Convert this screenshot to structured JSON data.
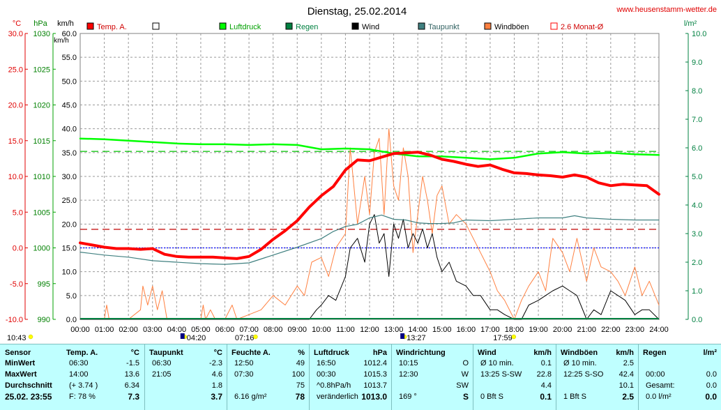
{
  "header": {
    "title": "Dienstag, 25.02.2014",
    "site": "www.heusenstamm-wetter.de"
  },
  "units": {
    "temp": "°C",
    "pressure": "hPa",
    "speed": "km/h",
    "rain": "l/m²"
  },
  "legend": [
    {
      "label": "Temp. A.",
      "color": "#ff0000",
      "style": "filled"
    },
    {
      "label": "",
      "color": "#000000",
      "style": "hollow"
    },
    {
      "label": "Luftdruck",
      "color": "#00ff00",
      "style": "filled"
    },
    {
      "label": "Regen",
      "color": "#008040",
      "style": "filled"
    },
    {
      "label": "Wind",
      "color": "#000000",
      "style": "filled"
    },
    {
      "label": "Taupunkt",
      "color": "#408080",
      "style": "filled"
    },
    {
      "label": "Windböen",
      "color": "#ff8040",
      "style": "filled"
    },
    {
      "label": "2.6 Monat-Ø",
      "color": "#ff0000",
      "style": "hollow"
    }
  ],
  "chart_data": {
    "type": "line",
    "title": "Dienstag, 25.02.2014",
    "axes": {
      "temp_ticks": [
        "30.0",
        "25.0",
        "20.0",
        "15.0",
        "10.0",
        "5.0",
        "0.0",
        "-5.0",
        "-10.0"
      ],
      "pressure_ticks": [
        "1030",
        "1025",
        "1020",
        "1015",
        "1010",
        "1005",
        "1000",
        "995",
        "990"
      ],
      "speed_ticks": [
        "60.0",
        "55.0",
        "50.0",
        "45.0",
        "40.0",
        "35.0",
        "30.0",
        "25.0",
        "20.0",
        "15.0",
        "10.0",
        "5.0",
        "0.0"
      ],
      "rain_ticks": [
        "10.0",
        "9.0",
        "8.0",
        "7.0",
        "6.0",
        "5.0",
        "4.0",
        "3.0",
        "2.0",
        "1.0",
        "0.0"
      ],
      "x_ticks": [
        "00:00",
        "01:00",
        "02:00",
        "03:00",
        "04:00",
        "05:00",
        "06:00",
        "07:00",
        "08:00",
        "09:00",
        "10:00",
        "11:00",
        "12:00",
        "13:00",
        "14:00",
        "15:00",
        "16:00",
        "17:00",
        "18:00",
        "19:00",
        "20:00",
        "21:00",
        "22:00",
        "23:00",
        "24:00"
      ],
      "temp_range": [
        -10,
        30
      ],
      "pressure_range": [
        990,
        1030
      ],
      "speed_range": [
        0,
        60
      ],
      "rain_range": [
        0,
        10
      ],
      "x_range_hours": [
        0,
        24
      ],
      "grid": true
    },
    "sun_markers": [
      {
        "label": "10:43",
        "hour": -1.6
      },
      {
        "label": "04:20",
        "hour": 4.33
      },
      {
        "label": "07:16",
        "hour": 7.27
      },
      {
        "label": "13:27",
        "hour": 13.45
      },
      {
        "label": "17:59",
        "hour": 17.98
      }
    ],
    "reference_lines": [
      {
        "name": "2.6 Monat-Ø",
        "axis": "temp",
        "value": 2.6,
        "color": "#c00000",
        "dash": "10,6"
      },
      {
        "name": "Luftdruck-Ø",
        "axis": "pressure",
        "value": 1013.5,
        "color": "#00c000",
        "dash": "10,6"
      },
      {
        "name": "0 °C",
        "axis": "temp",
        "value": 0.0,
        "color": "#0000ff",
        "dash": "2,2"
      }
    ],
    "series": [
      {
        "name": "Temp. A.",
        "axis": "temp",
        "color": "#ff0000",
        "width": 4,
        "x": [
          0,
          0.5,
          1,
          1.5,
          2,
          2.5,
          3,
          3.5,
          4,
          4.5,
          5,
          5.5,
          6,
          6.5,
          7,
          7.5,
          8,
          8.5,
          9,
          9.5,
          10,
          10.5,
          11,
          11.5,
          12,
          12.5,
          13,
          13.5,
          14,
          14.5,
          15,
          15.5,
          16,
          16.5,
          17,
          17.5,
          18,
          18.5,
          19,
          19.5,
          20,
          20.5,
          21,
          21.5,
          22,
          22.5,
          23,
          23.5,
          24
        ],
        "y": [
          0.7,
          0.4,
          0.1,
          -0.1,
          -0.1,
          -0.2,
          -0.1,
          -0.9,
          -1.2,
          -1.3,
          -1.3,
          -1.3,
          -1.4,
          -1.5,
          -1.2,
          -0.2,
          1.2,
          2.4,
          3.8,
          5.7,
          7.3,
          8.6,
          10.9,
          12.3,
          12.2,
          12.7,
          13.2,
          13.3,
          13.4,
          13.0,
          12.4,
          12.1,
          11.7,
          11.4,
          11.6,
          11.0,
          10.5,
          10.4,
          10.2,
          10.1,
          9.9,
          10.2,
          9.9,
          9.1,
          8.7,
          8.9,
          8.8,
          8.7,
          7.5
        ]
      },
      {
        "name": "Taupunkt",
        "axis": "temp",
        "color": "#408080",
        "width": 1.2,
        "x": [
          0,
          1,
          2,
          3,
          4,
          5,
          6,
          7,
          8,
          9,
          10,
          10.5,
          11,
          11.5,
          12,
          12.5,
          13,
          13.5,
          14,
          14.5,
          15,
          15.5,
          16,
          17,
          18,
          19,
          20,
          20.5,
          21,
          22,
          23,
          24
        ],
        "y": [
          -0.6,
          -1.0,
          -1.3,
          -1.8,
          -2.0,
          -2.2,
          -2.3,
          -2.1,
          -1.0,
          0.1,
          1.3,
          2.3,
          3.0,
          3.3,
          4.2,
          4.6,
          4.0,
          3.9,
          3.5,
          3.4,
          3.4,
          3.5,
          3.9,
          3.8,
          4.0,
          4.2,
          4.2,
          4.5,
          4.2,
          4.0,
          3.9,
          3.9
        ]
      },
      {
        "name": "Luftdruck",
        "axis": "pressure",
        "color": "#00ff00",
        "width": 2.5,
        "x": [
          0,
          1,
          2,
          3,
          4,
          5,
          6,
          7,
          8,
          9,
          10,
          11,
          12,
          13,
          14,
          15,
          16,
          17,
          18,
          19,
          20,
          21,
          22,
          23,
          24
        ],
        "y": [
          1015.3,
          1015.2,
          1015.0,
          1014.8,
          1014.6,
          1014.5,
          1014.5,
          1014.4,
          1014.5,
          1014.4,
          1013.8,
          1013.9,
          1013.8,
          1013.2,
          1012.8,
          1012.8,
          1012.6,
          1012.4,
          1012.6,
          1013.2,
          1013.4,
          1013.2,
          1013.3,
          1013.1,
          1013.0
        ]
      },
      {
        "name": "Windböen",
        "axis": "speed",
        "color": "#ff8040",
        "width": 1,
        "x": [
          0,
          1,
          1.1,
          1.2,
          2,
          2.5,
          2.6,
          2.8,
          3.0,
          3.2,
          3.4,
          3.6,
          4,
          5,
          5.1,
          5.2,
          5.4,
          5.6,
          6,
          6.3,
          6.5,
          7,
          7.5,
          8,
          8.5,
          9,
          9.3,
          9.6,
          10,
          10.3,
          10.6,
          11,
          11.2,
          11.5,
          11.8,
          12,
          12.2,
          12.4,
          12.6,
          12.8,
          13,
          13.2,
          13.4,
          13.6,
          13.8,
          14,
          14.2,
          14.4,
          14.6,
          14.8,
          15,
          15.3,
          15.6,
          16,
          16.3,
          16.6,
          17,
          17.3,
          17.6,
          18,
          18.3,
          18.6,
          19,
          19.3,
          19.6,
          20,
          20.3,
          20.6,
          21,
          21.3,
          21.6,
          22,
          22.3,
          22.6,
          23,
          23.3,
          23.6,
          24
        ],
        "y": [
          0,
          0,
          3,
          0,
          0,
          2,
          7,
          3,
          7,
          2,
          6,
          0,
          0,
          0,
          3,
          0,
          2,
          0,
          0,
          3,
          0,
          1,
          2,
          5,
          3,
          7,
          5,
          12,
          13,
          9,
          15,
          18,
          36,
          20,
          30,
          22,
          35,
          38,
          22,
          40,
          28,
          25,
          36,
          30,
          14,
          22,
          30,
          25,
          18,
          26,
          28,
          20,
          22,
          20,
          17,
          14,
          10,
          6,
          4,
          0,
          4,
          7,
          10,
          6,
          17,
          14,
          10,
          17,
          8,
          15,
          11,
          10,
          8,
          5,
          11,
          5,
          8,
          3
        ]
      },
      {
        "name": "Wind",
        "axis": "speed",
        "color": "#000000",
        "width": 1,
        "x": [
          0,
          9.5,
          9.8,
          10,
          10.3,
          10.6,
          11,
          11.2,
          11.5,
          11.8,
          12,
          12.2,
          12.4,
          12.6,
          12.8,
          13,
          13.2,
          13.4,
          13.6,
          13.8,
          14,
          14.2,
          14.4,
          14.6,
          14.8,
          15,
          15.3,
          15.6,
          16,
          16.3,
          16.6,
          17,
          17.3,
          17.6,
          18,
          18.3,
          18.6,
          19,
          19.3,
          19.6,
          20,
          20.3,
          20.6,
          21,
          21.3,
          21.6,
          22,
          22.3,
          22.6,
          23,
          23.3,
          23.6,
          24
        ],
        "y": [
          0,
          0,
          2,
          3,
          5,
          4,
          9,
          15,
          17,
          12,
          20,
          22,
          16,
          18,
          9,
          20,
          17,
          21,
          15,
          18,
          16,
          19,
          15,
          18,
          13,
          10,
          12,
          8,
          7,
          5,
          5,
          2,
          2,
          1,
          0,
          0,
          3,
          4,
          5,
          6,
          7,
          6,
          5,
          0,
          2,
          1,
          6,
          5,
          4,
          1,
          2,
          2,
          0
        ]
      }
    ]
  },
  "table": {
    "row_labels": [
      "Sensor",
      "MinWert",
      "MaxWert",
      "Durchschnitt",
      "25.02. 23:55"
    ],
    "cols": [
      {
        "head": [
          "Temp. A.",
          "°C"
        ],
        "rows": [
          [
            "06:30",
            "-1.5"
          ],
          [
            "14:00",
            "13.6"
          ],
          [
            "(+ 3.74 )",
            "6.34"
          ],
          [
            "F: 78 %",
            "7.3"
          ]
        ]
      },
      {
        "head": [
          "Taupunkt",
          "°C"
        ],
        "rows": [
          [
            "06:30",
            "-2.3"
          ],
          [
            "21:05",
            "4.6"
          ],
          [
            "",
            "1.8"
          ],
          [
            "",
            "3.7"
          ]
        ]
      },
      {
        "head": [
          "Feuchte A.",
          "%"
        ],
        "rows": [
          [
            "12:50",
            "49"
          ],
          [
            "07:30",
            "100"
          ],
          [
            "",
            "75"
          ],
          [
            "6.16 g/m²",
            "78"
          ]
        ]
      },
      {
        "head": [
          "Luftdruck",
          "hPa"
        ],
        "rows": [
          [
            "16:50",
            "1012.4"
          ],
          [
            "00:30",
            "1015.3"
          ],
          [
            "^0.8hPa/h",
            "1013.7"
          ],
          [
            "veränderlich",
            "1013.0"
          ]
        ]
      },
      {
        "head": [
          "Windrichtung",
          ""
        ],
        "rows": [
          [
            "10:15",
            "O"
          ],
          [
            "12:30",
            "W"
          ],
          [
            "",
            "SW"
          ],
          [
            "169 °",
            "S"
          ]
        ]
      },
      {
        "head": [
          "Wind",
          "km/h"
        ],
        "rows": [
          [
            "Ø 10 min.",
            "0.1"
          ],
          [
            "13:25   S-SW",
            "22.8"
          ],
          [
            "",
            "4.4"
          ],
          [
            "0 Bft S",
            "0.1"
          ]
        ]
      },
      {
        "head": [
          "Windböen",
          "km/h"
        ],
        "rows": [
          [
            "Ø 10 min.",
            "2.5"
          ],
          [
            "12:25   S-SO",
            "42.4"
          ],
          [
            "",
            "10.1"
          ],
          [
            "1 Bft S",
            "2.5"
          ]
        ]
      },
      {
        "head": [
          "Regen",
          "l/m²"
        ],
        "rows": [
          [
            "",
            ""
          ],
          [
            "00:00",
            "0.0"
          ],
          [
            "Gesamt:",
            "0.0"
          ],
          [
            "0.0 l/m²",
            "0.0"
          ]
        ]
      }
    ]
  }
}
